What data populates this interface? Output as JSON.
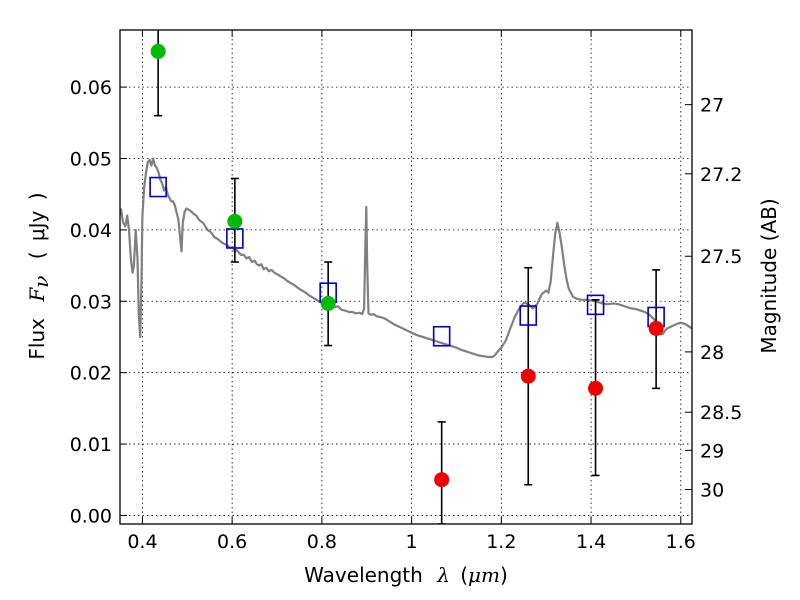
{
  "chart_data": {
    "type": "scatter",
    "xlabel": {
      "prefix": "Wavelength",
      "symbol": "λ",
      "unit_open": "(",
      "unit": "μm",
      "unit_close": ")"
    },
    "ylabel": {
      "prefix": "Flux",
      "symbol": "F",
      "subscript": "ν",
      "unit_open": "(",
      "unit": "μJy",
      "unit_close": ")"
    },
    "y2label": "Magnitude (AB)",
    "xlim": [
      0.35,
      1.625
    ],
    "ylim": [
      -0.0012,
      0.068
    ],
    "x_ticks": [
      {
        "value": 0.4,
        "label": "0.4"
      },
      {
        "value": 0.6,
        "label": "0.6"
      },
      {
        "value": 0.8,
        "label": "0.8"
      },
      {
        "value": 1.0,
        "label": "1"
      },
      {
        "value": 1.2,
        "label": "1.2"
      },
      {
        "value": 1.4,
        "label": "1.4"
      },
      {
        "value": 1.6,
        "label": "1.6"
      }
    ],
    "y_ticks": [
      {
        "value": 0.0,
        "label": "0.00"
      },
      {
        "value": 0.01,
        "label": "0.01"
      },
      {
        "value": 0.02,
        "label": "0.02"
      },
      {
        "value": 0.03,
        "label": "0.03"
      },
      {
        "value": 0.04,
        "label": "0.04"
      },
      {
        "value": 0.05,
        "label": "0.05"
      },
      {
        "value": 0.06,
        "label": "0.06"
      }
    ],
    "y2_ticks": [
      {
        "magnitude": 27,
        "label": "27"
      },
      {
        "magnitude": 27.2,
        "label": "27.2"
      },
      {
        "magnitude": 27.5,
        "label": "27.5"
      },
      {
        "magnitude": 28,
        "label": "28"
      },
      {
        "magnitude": 28.5,
        "label": "28.5"
      },
      {
        "magnitude": 29,
        "label": "29"
      },
      {
        "magnitude": 30,
        "label": "30"
      }
    ],
    "grid": true,
    "legend": "none",
    "model_spectrum": {
      "color": "#808080",
      "points": [
        [
          0.352,
          0.043
        ],
        [
          0.357,
          0.041
        ],
        [
          0.362,
          0.0405
        ],
        [
          0.366,
          0.042
        ],
        [
          0.37,
          0.04
        ],
        [
          0.374,
          0.036
        ],
        [
          0.378,
          0.034
        ],
        [
          0.381,
          0.035
        ],
        [
          0.385,
          0.04
        ],
        [
          0.389,
          0.036
        ],
        [
          0.392,
          0.028
        ],
        [
          0.395,
          0.025
        ],
        [
          0.398,
          0.033
        ],
        [
          0.4,
          0.042
        ],
        [
          0.404,
          0.046
        ],
        [
          0.408,
          0.048
        ],
        [
          0.412,
          0.0495
        ],
        [
          0.416,
          0.0498
        ],
        [
          0.42,
          0.049
        ],
        [
          0.424,
          0.05
        ],
        [
          0.428,
          0.049
        ],
        [
          0.432,
          0.0487
        ],
        [
          0.436,
          0.048
        ],
        [
          0.44,
          0.047
        ],
        [
          0.444,
          0.0465
        ],
        [
          0.448,
          0.0455
        ],
        [
          0.452,
          0.046
        ],
        [
          0.456,
          0.045
        ],
        [
          0.46,
          0.0445
        ],
        [
          0.464,
          0.044
        ],
        [
          0.468,
          0.044
        ],
        [
          0.472,
          0.0435
        ],
        [
          0.476,
          0.0425
        ],
        [
          0.48,
          0.0415
        ],
        [
          0.484,
          0.039
        ],
        [
          0.487,
          0.037
        ],
        [
          0.49,
          0.041
        ],
        [
          0.494,
          0.0425
        ],
        [
          0.498,
          0.043
        ],
        [
          0.504,
          0.0428
        ],
        [
          0.51,
          0.0425
        ],
        [
          0.515,
          0.0422
        ],
        [
          0.52,
          0.042
        ],
        [
          0.525,
          0.0415
        ],
        [
          0.53,
          0.0412
        ],
        [
          0.535,
          0.041
        ],
        [
          0.54,
          0.0405
        ],
        [
          0.545,
          0.04
        ],
        [
          0.55,
          0.0398
        ],
        [
          0.555,
          0.0395
        ],
        [
          0.56,
          0.039
        ],
        [
          0.566,
          0.0388
        ],
        [
          0.572,
          0.0385
        ],
        [
          0.578,
          0.0382
        ],
        [
          0.584,
          0.038
        ],
        [
          0.59,
          0.0378
        ],
        [
          0.596,
          0.0375
        ],
        [
          0.602,
          0.0375
        ],
        [
          0.606,
          0.037
        ],
        [
          0.61,
          0.0372
        ],
        [
          0.615,
          0.0368
        ],
        [
          0.62,
          0.0365
        ],
        [
          0.626,
          0.0365
        ],
        [
          0.632,
          0.036
        ],
        [
          0.638,
          0.0362
        ],
        [
          0.644,
          0.0355
        ],
        [
          0.65,
          0.0357
        ],
        [
          0.655,
          0.0352
        ],
        [
          0.66,
          0.035
        ],
        [
          0.665,
          0.0352
        ],
        [
          0.67,
          0.0345
        ],
        [
          0.676,
          0.0347
        ],
        [
          0.682,
          0.0342
        ],
        [
          0.688,
          0.0344
        ],
        [
          0.694,
          0.034
        ],
        [
          0.7,
          0.0338
        ],
        [
          0.708,
          0.0335
        ],
        [
          0.716,
          0.0332
        ],
        [
          0.724,
          0.0328
        ],
        [
          0.732,
          0.0325
        ],
        [
          0.74,
          0.0322
        ],
        [
          0.748,
          0.0318
        ],
        [
          0.756,
          0.0315
        ],
        [
          0.764,
          0.0312
        ],
        [
          0.772,
          0.0308
        ],
        [
          0.78,
          0.0305
        ],
        [
          0.788,
          0.0302
        ],
        [
          0.796,
          0.0299
        ],
        [
          0.804,
          0.0297
        ],
        [
          0.812,
          0.0294
        ],
        [
          0.82,
          0.0296
        ],
        [
          0.828,
          0.0292
        ],
        [
          0.836,
          0.0293
        ],
        [
          0.844,
          0.0288
        ],
        [
          0.852,
          0.0287
        ],
        [
          0.86,
          0.0285
        ],
        [
          0.868,
          0.0285
        ],
        [
          0.876,
          0.0283
        ],
        [
          0.884,
          0.0284
        ],
        [
          0.89,
          0.0282
        ],
        [
          0.894,
          0.029
        ],
        [
          0.897,
          0.038
        ],
        [
          0.899,
          0.0432
        ],
        [
          0.901,
          0.035
        ],
        [
          0.904,
          0.0283
        ],
        [
          0.91,
          0.0281
        ],
        [
          0.916,
          0.0282
        ],
        [
          0.922,
          0.0279
        ],
        [
          0.93,
          0.0278
        ],
        [
          0.94,
          0.0276
        ],
        [
          0.95,
          0.0272
        ],
        [
          0.96,
          0.0268
        ],
        [
          0.97,
          0.0265
        ],
        [
          0.98,
          0.0262
        ],
        [
          0.99,
          0.0259
        ],
        [
          1.0,
          0.0256
        ],
        [
          1.01,
          0.0253
        ],
        [
          1.02,
          0.0251
        ],
        [
          1.03,
          0.0249
        ],
        [
          1.04,
          0.0247
        ],
        [
          1.05,
          0.0245
        ],
        [
          1.06,
          0.0243
        ],
        [
          1.07,
          0.0241
        ],
        [
          1.08,
          0.0239
        ],
        [
          1.09,
          0.0237
        ],
        [
          1.1,
          0.0235
        ],
        [
          1.11,
          0.0232
        ],
        [
          1.12,
          0.023
        ],
        [
          1.13,
          0.0228
        ],
        [
          1.14,
          0.0226
        ],
        [
          1.15,
          0.0224
        ],
        [
          1.16,
          0.0223
        ],
        [
          1.17,
          0.0222
        ],
        [
          1.18,
          0.0222
        ],
        [
          1.185,
          0.0224
        ],
        [
          1.19,
          0.0228
        ],
        [
          1.195,
          0.0232
        ],
        [
          1.2,
          0.0235
        ],
        [
          1.21,
          0.0245
        ],
        [
          1.22,
          0.0262
        ],
        [
          1.23,
          0.0278
        ],
        [
          1.24,
          0.029
        ],
        [
          1.25,
          0.0298
        ],
        [
          1.26,
          0.0296
        ],
        [
          1.27,
          0.029
        ],
        [
          1.28,
          0.0296
        ],
        [
          1.29,
          0.031
        ],
        [
          1.3,
          0.0315
        ],
        [
          1.305,
          0.0312
        ],
        [
          1.31,
          0.0328
        ],
        [
          1.315,
          0.0362
        ],
        [
          1.32,
          0.0395
        ],
        [
          1.325,
          0.041
        ],
        [
          1.33,
          0.0395
        ],
        [
          1.335,
          0.0375
        ],
        [
          1.34,
          0.0352
        ],
        [
          1.345,
          0.0332
        ],
        [
          1.35,
          0.0318
        ],
        [
          1.355,
          0.0312
        ],
        [
          1.36,
          0.0306
        ],
        [
          1.37,
          0.0303
        ],
        [
          1.38,
          0.0302
        ],
        [
          1.39,
          0.0302
        ],
        [
          1.4,
          0.0301
        ],
        [
          1.41,
          0.03
        ],
        [
          1.42,
          0.0298
        ],
        [
          1.43,
          0.0296
        ],
        [
          1.44,
          0.0296
        ],
        [
          1.45,
          0.0297
        ],
        [
          1.46,
          0.0296
        ],
        [
          1.47,
          0.0294
        ],
        [
          1.48,
          0.0292
        ],
        [
          1.49,
          0.029
        ],
        [
          1.5,
          0.0289
        ],
        [
          1.51,
          0.0287
        ],
        [
          1.52,
          0.0285
        ],
        [
          1.53,
          0.0281
        ],
        [
          1.54,
          0.0275
        ],
        [
          1.55,
          0.0264
        ],
        [
          1.555,
          0.0254
        ],
        [
          1.56,
          0.0254
        ],
        [
          1.565,
          0.0259
        ],
        [
          1.57,
          0.0262
        ],
        [
          1.58,
          0.0265
        ],
        [
          1.59,
          0.0268
        ],
        [
          1.6,
          0.027
        ],
        [
          1.61,
          0.0268
        ],
        [
          1.625,
          0.0262
        ]
      ]
    },
    "model_photometry": {
      "color": "#0000cc",
      "marker": "open-square",
      "points": [
        {
          "x": 0.435,
          "y": 0.046
        },
        {
          "x": 0.606,
          "y": 0.0388
        },
        {
          "x": 0.814,
          "y": 0.0312
        },
        {
          "x": 1.067,
          "y": 0.0251
        },
        {
          "x": 1.26,
          "y": 0.028
        },
        {
          "x": 1.41,
          "y": 0.0295
        },
        {
          "x": 1.545,
          "y": 0.0278
        }
      ]
    },
    "detections": {
      "color": "#00bb00",
      "marker": "filled-circle",
      "points": [
        {
          "x": 0.435,
          "y": 0.065,
          "err_low": 0.056,
          "err_high": 0.072
        },
        {
          "x": 0.606,
          "y": 0.0412,
          "err_low": 0.0355,
          "err_high": 0.0472
        },
        {
          "x": 0.814,
          "y": 0.0297,
          "err_low": 0.0238,
          "err_high": 0.0355
        }
      ]
    },
    "low_snr_measurements": {
      "color": "#ee0000",
      "marker": "filled-circle",
      "points": [
        {
          "x": 1.067,
          "y": 0.005,
          "err_low": -0.0012,
          "err_high": 0.0131
        },
        {
          "x": 1.26,
          "y": 0.0195,
          "err_low": 0.0043,
          "err_high": 0.0347
        },
        {
          "x": 1.41,
          "y": 0.0178,
          "err_low": 0.0056,
          "err_high": 0.0302
        },
        {
          "x": 1.545,
          "y": 0.0262,
          "err_low": 0.0178,
          "err_high": 0.0344
        }
      ]
    }
  }
}
